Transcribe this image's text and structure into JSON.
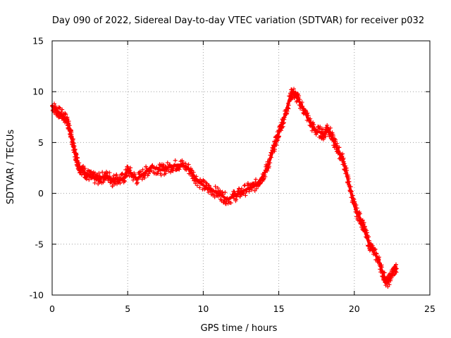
{
  "chart_data": {
    "type": "scatter",
    "title": "Day 090 of 2022, Sidereal Day-to-day VTEC variation (SDTVAR) for receiver p032",
    "xlabel": "GPS time / hours",
    "ylabel": "SDTVAR / TECUs",
    "xlim": [
      0,
      25
    ],
    "ylim": [
      -10,
      15
    ],
    "xticks": [
      0,
      5,
      10,
      15,
      20,
      25
    ],
    "yticks": [
      -10,
      -5,
      0,
      5,
      10,
      15
    ],
    "grid": true,
    "marker": "plus",
    "series": [
      {
        "name": "SDTVAR",
        "color": "#ff0000",
        "points": [
          [
            0.0,
            8.6
          ],
          [
            0.2,
            8.3
          ],
          [
            0.4,
            8.0
          ],
          [
            0.6,
            7.8
          ],
          [
            0.8,
            7.5
          ],
          [
            1.0,
            7.2
          ],
          [
            1.1,
            6.6
          ],
          [
            1.2,
            6.0
          ],
          [
            1.3,
            5.4
          ],
          [
            1.4,
            4.8
          ],
          [
            1.5,
            4.0
          ],
          [
            1.6,
            3.5
          ],
          [
            1.7,
            3.0
          ],
          [
            1.8,
            2.6
          ],
          [
            2.0,
            2.3
          ],
          [
            2.2,
            2.0
          ],
          [
            2.4,
            1.8
          ],
          [
            2.6,
            1.6
          ],
          [
            2.8,
            1.5
          ],
          [
            3.0,
            1.4
          ],
          [
            3.2,
            1.5
          ],
          [
            3.5,
            1.7
          ],
          [
            3.8,
            1.6
          ],
          [
            4.0,
            1.2
          ],
          [
            4.2,
            1.5
          ],
          [
            4.5,
            1.3
          ],
          [
            4.8,
            1.6
          ],
          [
            5.0,
            2.3
          ],
          [
            5.3,
            1.8
          ],
          [
            5.6,
            1.4
          ],
          [
            6.0,
            1.9
          ],
          [
            6.3,
            2.2
          ],
          [
            6.6,
            2.6
          ],
          [
            7.0,
            2.4
          ],
          [
            7.3,
            2.3
          ],
          [
            7.6,
            2.5
          ],
          [
            8.0,
            2.7
          ],
          [
            8.3,
            2.8
          ],
          [
            8.6,
            2.8
          ],
          [
            9.0,
            2.5
          ],
          [
            9.3,
            1.9
          ],
          [
            9.6,
            1.3
          ],
          [
            10.0,
            0.8
          ],
          [
            10.3,
            0.5
          ],
          [
            10.6,
            0.3
          ],
          [
            11.0,
            0.0
          ],
          [
            11.3,
            -0.3
          ],
          [
            11.6,
            -0.6
          ],
          [
            12.0,
            -0.3
          ],
          [
            12.3,
            -0.1
          ],
          [
            12.6,
            0.2
          ],
          [
            13.0,
            0.5
          ],
          [
            13.3,
            0.6
          ],
          [
            13.6,
            1.0
          ],
          [
            13.9,
            1.6
          ],
          [
            14.1,
            2.1
          ],
          [
            14.3,
            2.8
          ],
          [
            14.5,
            3.7
          ],
          [
            14.7,
            4.6
          ],
          [
            14.9,
            5.5
          ],
          [
            15.1,
            6.4
          ],
          [
            15.3,
            7.2
          ],
          [
            15.5,
            8.1
          ],
          [
            15.7,
            9.2
          ],
          [
            15.9,
            10.0
          ],
          [
            16.1,
            9.6
          ],
          [
            16.3,
            9.2
          ],
          [
            16.6,
            8.4
          ],
          [
            16.9,
            7.5
          ],
          [
            17.2,
            6.6
          ],
          [
            17.5,
            6.1
          ],
          [
            17.8,
            6.0
          ],
          [
            18.0,
            5.7
          ],
          [
            18.2,
            6.5
          ],
          [
            18.4,
            6.0
          ],
          [
            18.6,
            5.2
          ],
          [
            18.8,
            4.7
          ],
          [
            19.0,
            4.0
          ],
          [
            19.2,
            3.5
          ],
          [
            19.4,
            2.5
          ],
          [
            19.6,
            1.2
          ],
          [
            19.8,
            0.0
          ],
          [
            20.0,
            -1.2
          ],
          [
            20.2,
            -2.0
          ],
          [
            20.4,
            -2.5
          ],
          [
            20.6,
            -3.2
          ],
          [
            20.8,
            -4.2
          ],
          [
            21.0,
            -5.0
          ],
          [
            21.3,
            -5.8
          ],
          [
            21.6,
            -6.5
          ],
          [
            21.8,
            -7.5
          ],
          [
            22.0,
            -8.3
          ],
          [
            22.2,
            -8.8
          ],
          [
            22.4,
            -8.2
          ],
          [
            22.6,
            -7.6
          ],
          [
            22.8,
            -7.4
          ]
        ]
      }
    ]
  }
}
